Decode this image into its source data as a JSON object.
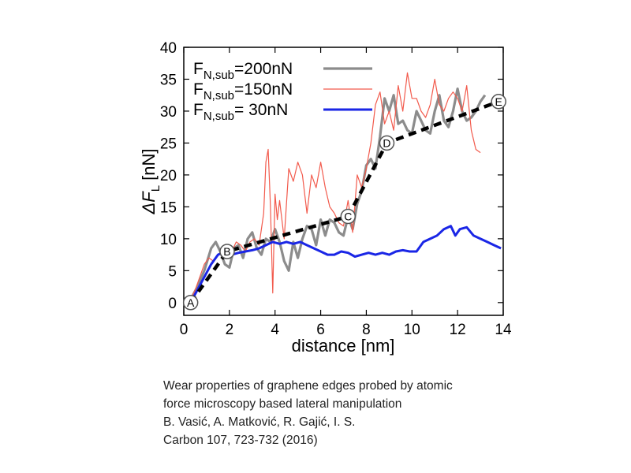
{
  "chart_data": {
    "type": "line",
    "xlabel": "distance [nm]",
    "ylabel_main": "ΔF",
    "ylabel_sub": "L",
    "ylabel_unit": " [nN]",
    "xlim": [
      0,
      14
    ],
    "ylim": [
      -2,
      40
    ],
    "xticks": [
      0,
      2,
      4,
      6,
      8,
      10,
      12,
      14
    ],
    "yticks": [
      0,
      5,
      10,
      15,
      20,
      25,
      30,
      35,
      40
    ],
    "grid": false,
    "legend_position": "top-left",
    "series": [
      {
        "name": "200nN",
        "legend_main": "F",
        "legend_sub": "N,sub",
        "legend_value": "=200nN",
        "color": "#8c8c8c",
        "x": [
          0.3,
          0.6,
          0.9,
          1.2,
          1.4,
          1.6,
          1.8,
          2.0,
          2.2,
          2.4,
          2.6,
          2.8,
          3.0,
          3.2,
          3.4,
          3.6,
          3.8,
          4.0,
          4.2,
          4.4,
          4.6,
          4.8,
          5.0,
          5.2,
          5.4,
          5.6,
          5.8,
          6.0,
          6.2,
          6.4,
          6.6,
          6.8,
          7.0,
          7.2,
          7.4,
          7.6,
          7.8,
          8.0,
          8.2,
          8.4,
          8.6,
          8.8,
          9.0,
          9.2,
          9.4,
          9.6,
          9.8,
          10.0,
          10.2,
          10.4,
          10.6,
          10.8,
          11.0,
          11.2,
          11.4,
          11.6,
          11.8,
          12.0,
          12.2,
          12.4,
          12.6,
          12.8,
          13.0,
          13.2
        ],
        "y": [
          0.5,
          2.5,
          5,
          8.5,
          9.5,
          8,
          6,
          5.5,
          8.5,
          9,
          7,
          10,
          11,
          8.5,
          7.5,
          10,
          9.5,
          11.5,
          9.5,
          6.5,
          5,
          9.5,
          7,
          10,
          12,
          11.5,
          9,
          13,
          10.5,
          13,
          12.5,
          11,
          10.5,
          13.5,
          11.5,
          15.5,
          17.5,
          21.5,
          22.5,
          21,
          26,
          32,
          30,
          32.5,
          28,
          28.5,
          27,
          26.5,
          30,
          28.5,
          27,
          26.5,
          30,
          32.5,
          28.5,
          27.5,
          30,
          33.5,
          30,
          28.5,
          29,
          30,
          31.5,
          32.5
        ]
      },
      {
        "name": "150nN",
        "legend_main": "F",
        "legend_sub": "N,sub",
        "legend_value": "=150nN",
        "color": "#f25a4c",
        "x": [
          0.3,
          0.5,
          0.7,
          0.9,
          1.1,
          1.3,
          1.5,
          1.7,
          1.9,
          2.1,
          2.3,
          2.5,
          2.7,
          2.9,
          3.1,
          3.3,
          3.5,
          3.6,
          3.7,
          3.8,
          3.9,
          4.0,
          4.1,
          4.2,
          4.4,
          4.6,
          4.8,
          5.0,
          5.2,
          5.4,
          5.6,
          5.8,
          6.0,
          6.2,
          6.4,
          6.6,
          6.8,
          7.0,
          7.2,
          7.4,
          7.6,
          7.8,
          8.0,
          8.2,
          8.4,
          8.6,
          8.8,
          9.0,
          9.2,
          9.4,
          9.6,
          9.8,
          10.0,
          10.2,
          10.4,
          10.6,
          10.8,
          11.0,
          11.2,
          11.4,
          11.6,
          11.8,
          12.0,
          12.2,
          12.4,
          12.6,
          12.8,
          13.0
        ],
        "y": [
          0.5,
          2,
          4,
          6,
          7,
          6.5,
          7.5,
          8,
          8.5,
          8,
          9.5,
          9,
          8,
          9.5,
          10,
          9,
          14,
          22,
          24,
          15,
          1.5,
          17,
          13,
          16,
          10,
          21,
          19,
          22,
          20,
          14,
          20,
          18,
          22,
          18,
          15,
          14,
          12.5,
          12,
          16,
          11,
          20,
          18,
          21,
          25,
          31,
          33,
          28,
          30,
          27,
          34,
          30,
          36,
          32,
          32,
          30,
          29,
          31,
          35,
          31,
          30,
          32,
          33,
          32,
          30,
          34,
          27,
          24,
          23.5
        ]
      },
      {
        "name": "30nN",
        "legend_main": "F",
        "legend_sub": "N,sub",
        "legend_value": "=  30nN",
        "color": "#1a26e6",
        "x": [
          0.3,
          0.6,
          0.9,
          1.2,
          1.5,
          1.8,
          2.1,
          2.4,
          2.7,
          3.0,
          3.3,
          3.6,
          3.9,
          4.2,
          4.5,
          4.8,
          5.1,
          5.4,
          5.7,
          6.0,
          6.3,
          6.6,
          6.9,
          7.2,
          7.5,
          7.8,
          8.1,
          8.4,
          8.7,
          9.0,
          9.3,
          9.6,
          9.9,
          10.2,
          10.5,
          10.8,
          11.1,
          11.4,
          11.7,
          11.9,
          12.1,
          12.4,
          12.7,
          13.0,
          13.3,
          13.6,
          13.9
        ],
        "y": [
          0,
          2,
          4,
          6,
          7.5,
          8,
          7.5,
          7.8,
          8,
          8.2,
          8.5,
          9,
          9.5,
          9.2,
          9.5,
          9.2,
          9.5,
          9,
          8.5,
          8,
          7.5,
          7.5,
          8,
          7.8,
          7.2,
          7.5,
          7.8,
          7.5,
          7.8,
          7.5,
          8,
          8.2,
          8,
          8,
          9.5,
          10,
          10.5,
          11.5,
          12,
          10.5,
          11.5,
          11.8,
          10.5,
          10,
          9.5,
          9,
          8.5
        ]
      },
      {
        "name": "linear fit",
        "color": "#000000",
        "x": [
          0.3,
          1.9,
          7.2,
          8.9,
          13.8
        ],
        "y": [
          0,
          8,
          13.5,
          25,
          31.5
        ]
      }
    ],
    "points": [
      {
        "label": "A",
        "x": 0.3,
        "y": 0
      },
      {
        "label": "B",
        "x": 1.9,
        "y": 8
      },
      {
        "label": "C",
        "x": 7.2,
        "y": 13.5
      },
      {
        "label": "D",
        "x": 8.9,
        "y": 25
      },
      {
        "label": "E",
        "x": 13.8,
        "y": 31.5
      }
    ]
  },
  "citation": {
    "line1": "Wear properties of graphene edges probed by atomic",
    "line2": "force microscopy based lateral manipulation",
    "line3": "B. Vasić, A. Matković, R. Gajić, I. S.",
    "line4": "Carbon 107, 723-732 (2016)"
  }
}
